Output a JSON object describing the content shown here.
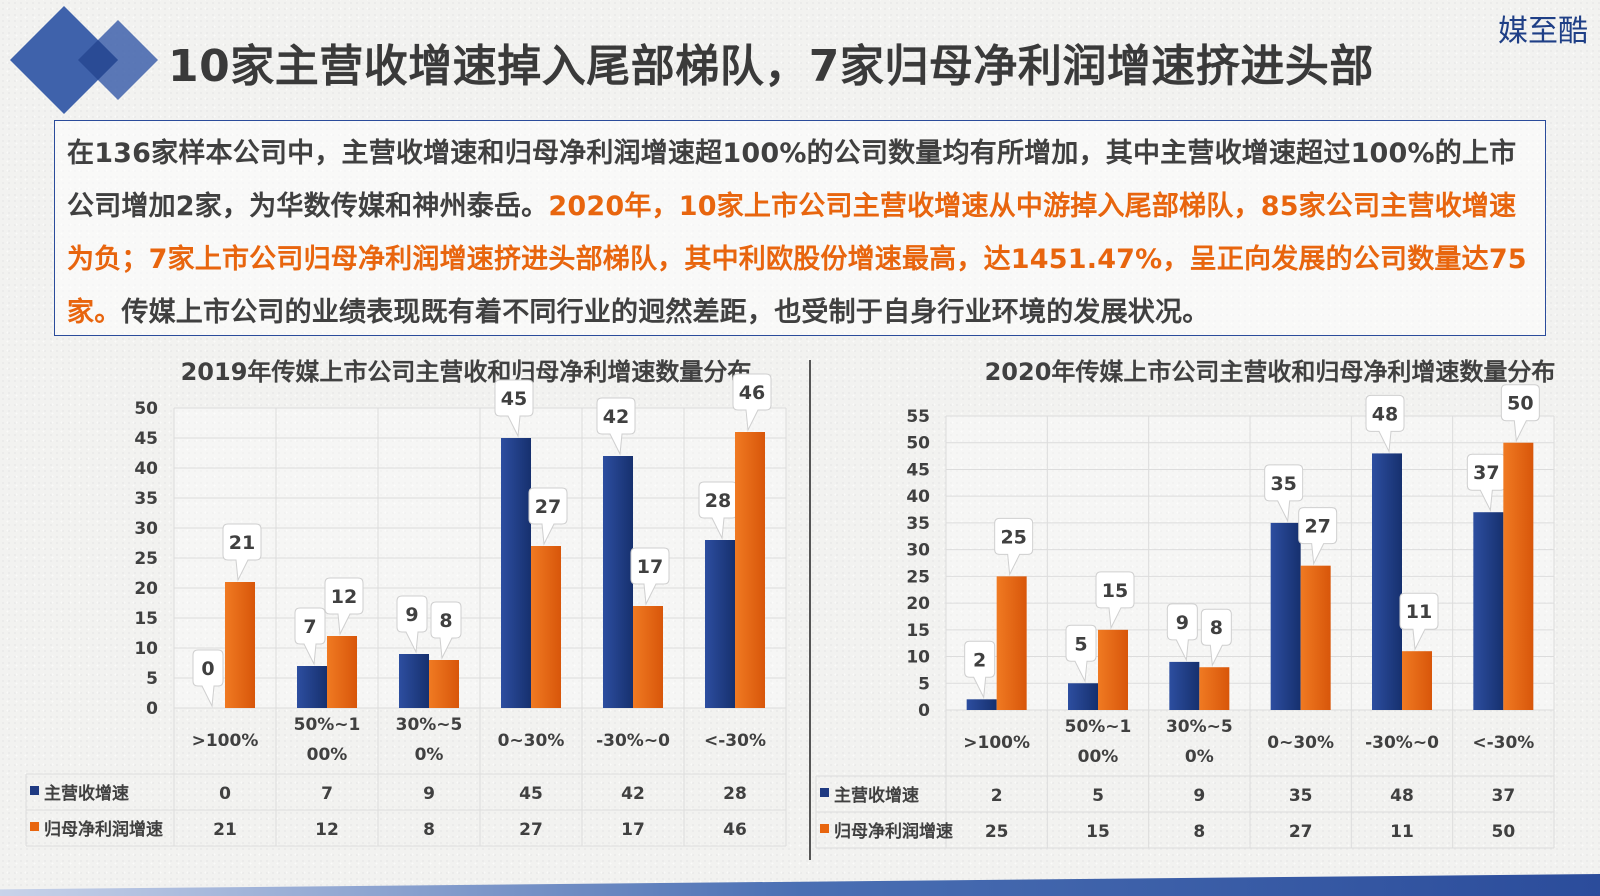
{
  "header": {
    "title": "10家主营收增速掉入尾部梯队，7家归母净利润增速挤进头部",
    "brand": "媒至酷"
  },
  "summary": {
    "part1": "在136家样本公司中，主营收增速和归母净利润增速超100%的公司数量均有所增加，其中主营收增速超过100%的上市公司增加2家，为华数传媒和神州泰岳。",
    "part2": "2020年，10家上市公司主营收增速从中游掉入尾部梯队，85家公司主营收增速为负；7家上市公司归母净利润增速挤进头部梯队，其中利欧股份增速最高，达1451.47%，呈正向发展的公司数量达75家。",
    "part3": "传媒上市公司的业绩表现既有着不同行业的迥然差距，也受制于自身行业环境的发展状况。"
  },
  "colors": {
    "revenue": "#1f3a82",
    "profit": "#e8650e",
    "title_text": "#404040",
    "accent_blue": "#2b4c9b"
  },
  "chart_data": [
    {
      "type": "bar",
      "title": "2019年传媒上市公司主营收和归母净利增速数量分布",
      "categories": [
        ">100%",
        "50%~100%",
        "30%~50%",
        "0~30%",
        "-30%~0",
        "<-30%"
      ],
      "category_labels": [
        [
          ">100%"
        ],
        [
          "50%~1",
          "00%"
        ],
        [
          "30%~5",
          "0%"
        ],
        [
          "0~30%"
        ],
        [
          "-30%~0"
        ],
        [
          "<-30%"
        ]
      ],
      "series": [
        {
          "name": "主营收增速",
          "values": [
            0,
            7,
            9,
            45,
            42,
            28
          ]
        },
        {
          "name": "归母净利润增速",
          "values": [
            21,
            12,
            8,
            27,
            17,
            46
          ]
        }
      ],
      "ylim": [
        0,
        50
      ],
      "yticks": [
        0,
        5,
        10,
        15,
        20,
        25,
        30,
        35,
        40,
        45,
        50
      ],
      "grid": true,
      "data_table": true
    },
    {
      "type": "bar",
      "title": "2020年传媒上市公司主营收和归母净利增速数量分布",
      "categories": [
        ">100%",
        "50%~100%",
        "30%~50%",
        "0~30%",
        "-30%~0",
        "<-30%"
      ],
      "category_labels": [
        [
          ">100%"
        ],
        [
          "50%~1",
          "00%"
        ],
        [
          "30%~5",
          "0%"
        ],
        [
          "0~30%"
        ],
        [
          "-30%~0"
        ],
        [
          "<-30%"
        ]
      ],
      "series": [
        {
          "name": "主营收增速",
          "values": [
            2,
            5,
            9,
            35,
            48,
            37
          ]
        },
        {
          "name": "归母净利润增速",
          "values": [
            25,
            15,
            8,
            27,
            11,
            50
          ]
        }
      ],
      "ylim": [
        0,
        55
      ],
      "yticks": [
        0,
        5,
        10,
        15,
        20,
        25,
        30,
        35,
        40,
        45,
        50,
        55
      ],
      "grid": true,
      "data_table": true
    }
  ]
}
